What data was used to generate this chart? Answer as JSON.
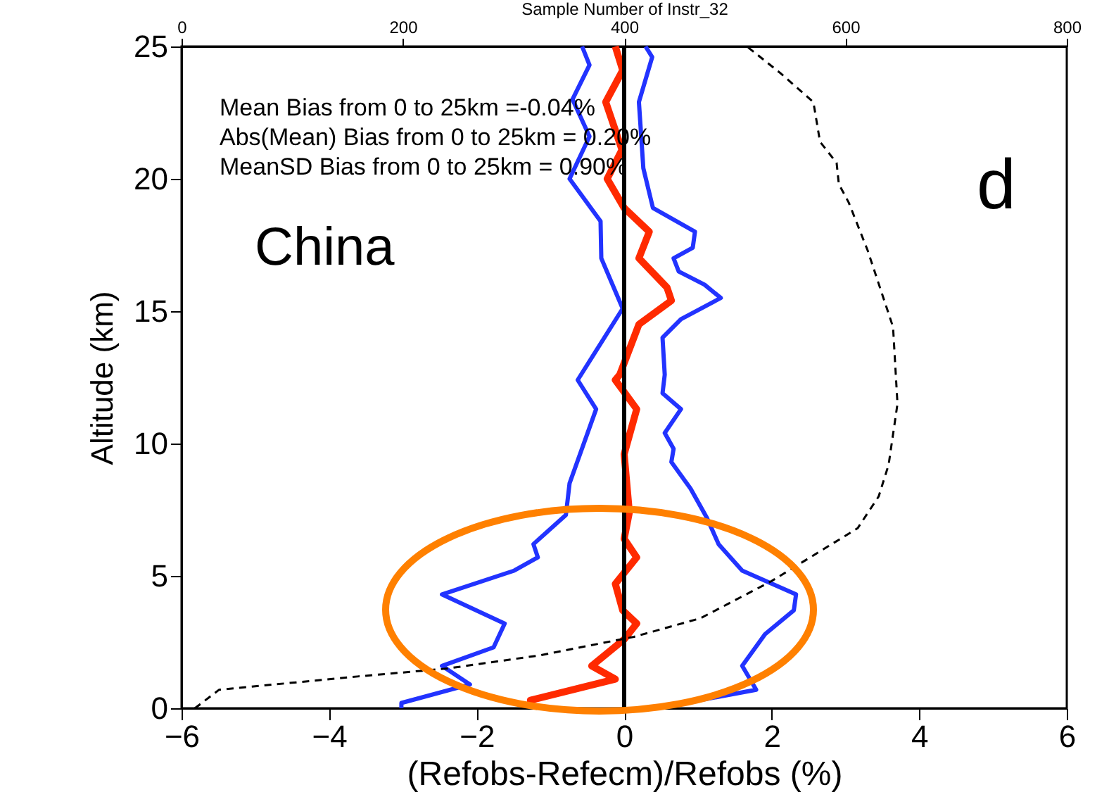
{
  "chart_data": {
    "type": "line",
    "xlabel": "(Refobs-Refecm)/Refobs (%)",
    "ylabel": "Altitude (km)",
    "x2label": "Sample Number of Instr_32",
    "xlim": [
      -6,
      6
    ],
    "xticks": [
      -6,
      -4,
      -2,
      0,
      2,
      4,
      6
    ],
    "ylim": [
      0,
      25
    ],
    "yticks": [
      0,
      5,
      10,
      15,
      20,
      25
    ],
    "x2lim": [
      0,
      800
    ],
    "x2ticks": [
      0,
      200,
      400,
      600,
      800
    ],
    "grid": false,
    "series": [
      {
        "color": "#2233ff",
        "line_style": "solid",
        "x": [
          -3.02,
          -3.02,
          -2.09,
          -2.47,
          -1.77,
          -1.62,
          -2.47,
          -1.49,
          -1.17,
          -1.23,
          -0.79,
          -0.74,
          -0.38,
          -0.63,
          -0.02,
          -0.31,
          -0.32,
          -0.74,
          -0.47,
          -0.7,
          -0.47,
          -0.57
        ],
        "values": [
          0,
          0.2,
          0.9,
          1.6,
          2.3,
          3.2,
          4.3,
          5.2,
          5.7,
          6.2,
          7.3,
          8.5,
          11.3,
          12.4,
          15.1,
          17.0,
          18.4,
          20.0,
          21.6,
          23.0,
          24.3,
          25
        ]
      },
      {
        "color": "#2233ff",
        "line_style": "solid",
        "x": [
          0.44,
          1.79,
          1.6,
          1.91,
          2.3,
          2.33,
          1.6,
          1.28,
          1.12,
          0.9,
          0.64,
          0.67,
          0.55,
          0.77,
          0.52,
          0.55,
          0.52,
          0.77,
          1.31,
          1.09,
          0.74,
          0.67,
          0.93,
          0.96,
          0.39,
          0.26,
          0.2,
          0.38,
          0.29
        ],
        "values": [
          0,
          0.7,
          1.6,
          2.8,
          3.7,
          4.3,
          5.2,
          6.2,
          7.2,
          8.3,
          9.3,
          9.8,
          10.4,
          11.3,
          11.9,
          12.6,
          14.0,
          14.7,
          15.5,
          16.0,
          16.5,
          17.0,
          17.4,
          18.0,
          18.9,
          20.4,
          22.9,
          24.6,
          25
        ]
      },
      {
        "color": "#ff2a00",
        "line_style": "solid",
        "x": [
          -1.27,
          -1.27,
          -0.12,
          -0.44,
          0,
          0.17,
          -0.02,
          -0.12,
          0.17,
          0,
          0.07,
          0,
          0.17,
          -0.12,
          -0.06,
          0.2,
          0.64,
          0.58,
          0.2,
          0.34,
          0,
          -0.23,
          -0.03,
          -0.25,
          -0.02,
          -0.12
        ],
        "values": [
          0,
          0.3,
          1.1,
          1.6,
          2.6,
          3.2,
          3.7,
          4.7,
          5.7,
          6.4,
          7.4,
          9.6,
          11.3,
          12.4,
          12.6,
          14.5,
          15.4,
          15.9,
          17.0,
          18.0,
          18.9,
          20.0,
          21.1,
          22.9,
          24.1,
          25
        ]
      },
      {
        "color": "#000000",
        "line_style": "dashed",
        "axis": "x2",
        "x": [
          12,
          34,
          159,
          240,
          324,
          409,
          469,
          533,
          611,
          630,
          639,
          647,
          643,
          620,
          603,
          594,
          592,
          577,
          571,
          541,
          511
        ],
        "values": [
          0,
          0.7,
          1.2,
          1.5,
          2.0,
          2.7,
          3.4,
          4.8,
          6.8,
          8.0,
          9.2,
          11.5,
          14.4,
          17.3,
          19.1,
          19.8,
          20.6,
          21.4,
          22.9,
          24.0,
          25
        ]
      }
    ],
    "ref_lines": [
      {
        "axis": "x",
        "value": 0,
        "color": "#000000"
      }
    ],
    "annotations": [
      "Mean Bias from 0 to 25km =-0.04%",
      "Abs(Mean) Bias from 0 to 25km = 0.20%",
      "MeanSD Bias from 0 to 25km = 0.90%",
      "China",
      "d"
    ]
  }
}
